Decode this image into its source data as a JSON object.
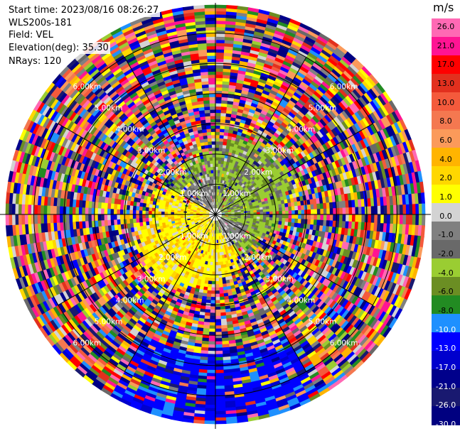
{
  "header": {
    "start_time": "Start time: 2023/08/16 08:26:27",
    "instrument": "WLS200s-181",
    "field": "Field: VEL",
    "elevation": "Elevation(deg): 35.30",
    "nrays": "NRays: 120"
  },
  "colorbar": {
    "unit": "m/s",
    "colors": [
      "#ff69b4",
      "#ff1493",
      "#ff0000",
      "#e2301e",
      "#f45a3c",
      "#f47850",
      "#fb9a5a",
      "#ffb400",
      "#ffd700",
      "#ffff00",
      "#d3d3d3",
      "#808080",
      "#696969",
      "#9acd32",
      "#6b8e23",
      "#228b22",
      "#1e90ff",
      "#0000ff",
      "#0000cd",
      "#00008b",
      "#191970",
      "#000080"
    ],
    "tick_labels": [
      "26.0",
      "21.0",
      "17.0",
      "13.0",
      "10.0",
      "8.0",
      "6.0",
      "4.0",
      "2.0",
      "1.0",
      "0.0",
      "-1.0",
      "-2.0",
      "-4.0",
      "-6.0",
      "-8.0",
      "-10.0",
      "-13.0",
      "-17.0",
      "-21.0",
      "-26.0",
      "-30.0"
    ]
  },
  "chart_data": {
    "type": "heatmap",
    "subtype": "radar PPI, velocity",
    "field": "VEL",
    "units": "m/s",
    "vmin": -30,
    "vmax": 26,
    "n_rays": 120,
    "elevation_deg": 35.3,
    "range_rings_km": [
      1.0,
      2.0,
      3.0,
      4.0,
      5.0,
      6.0
    ],
    "ring_labels": [
      "1.00km",
      "2.00km",
      "3.00km",
      "4.00km",
      "5.00km",
      "6.00km"
    ],
    "max_range_km": 7.0,
    "spoke_angles_deg": [
      0,
      30,
      60,
      90,
      120,
      150,
      180,
      210,
      240,
      270,
      300,
      330
    ],
    "regions": [
      {
        "where": "inner, west and south (~0-2 km)",
        "value_range": [
          1,
          4
        ],
        "note": "yellow"
      },
      {
        "where": "inner, north and east (~0-2.5 km)",
        "value_range": [
          -4,
          -1
        ],
        "note": "yellow-green"
      },
      {
        "where": "inner, northwest and southeast (~0-1.5 km)",
        "value_range": [
          -1,
          1
        ],
        "note": "gray"
      },
      {
        "where": "south-southeast, outer (~5-7 km)",
        "value_range": [
          -17,
          -13
        ],
        "note": "blue"
      },
      {
        "where": "beyond ~3 km elsewhere",
        "value_range": [
          -30,
          26
        ],
        "note": "noise"
      }
    ]
  }
}
